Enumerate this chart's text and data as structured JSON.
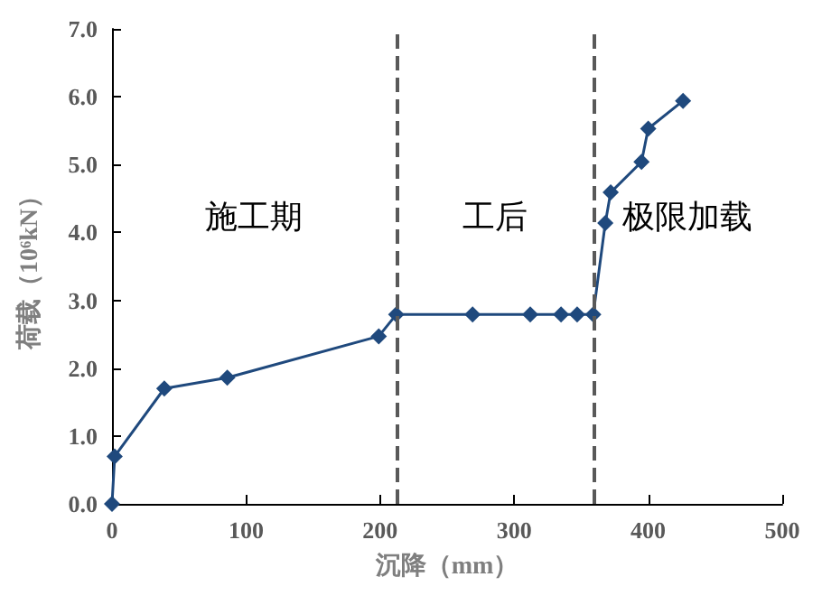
{
  "chart_data": {
    "type": "line",
    "xlabel": "沉降（mm）",
    "ylabel": "荷载（10⁶kN）",
    "series": [
      {
        "color": "#1f497d",
        "x": [
          0,
          2,
          39,
          86,
          199,
          212,
          269,
          312,
          335,
          347,
          359,
          368,
          372,
          395,
          400,
          426
        ],
        "values": [
          0,
          0.7,
          1.7,
          1.86,
          2.47,
          2.79,
          2.79,
          2.79,
          2.79,
          2.79,
          2.79,
          4.14,
          4.59,
          5.04,
          5.53,
          5.94
        ]
      }
    ],
    "xlim": [
      0,
      500
    ],
    "xticks": [
      0,
      100,
      200,
      300,
      400,
      500
    ],
    "ylim": [
      0,
      7
    ],
    "yticks": [
      {
        "value": 0,
        "label": "0.0"
      },
      {
        "value": 1,
        "label": "1.0"
      },
      {
        "value": 2,
        "label": "2.0"
      },
      {
        "value": 3,
        "label": "3.0"
      },
      {
        "value": 4,
        "label": "4.0"
      },
      {
        "value": 5,
        "label": "5.0"
      },
      {
        "value": 6,
        "label": "6.0"
      },
      {
        "value": 7,
        "label": "7.0"
      }
    ],
    "ref_lines": [
      {
        "axis": "x",
        "value": 212,
        "color": "#595959",
        "line_style": "dashed"
      },
      {
        "axis": "x",
        "value": 359,
        "color": "#595959",
        "line_style": "dashed"
      }
    ],
    "annotations": [
      "施工期",
      "工后",
      "极限加载"
    ],
    "marker": "diamond",
    "line_style": "solid",
    "grid": false
  }
}
